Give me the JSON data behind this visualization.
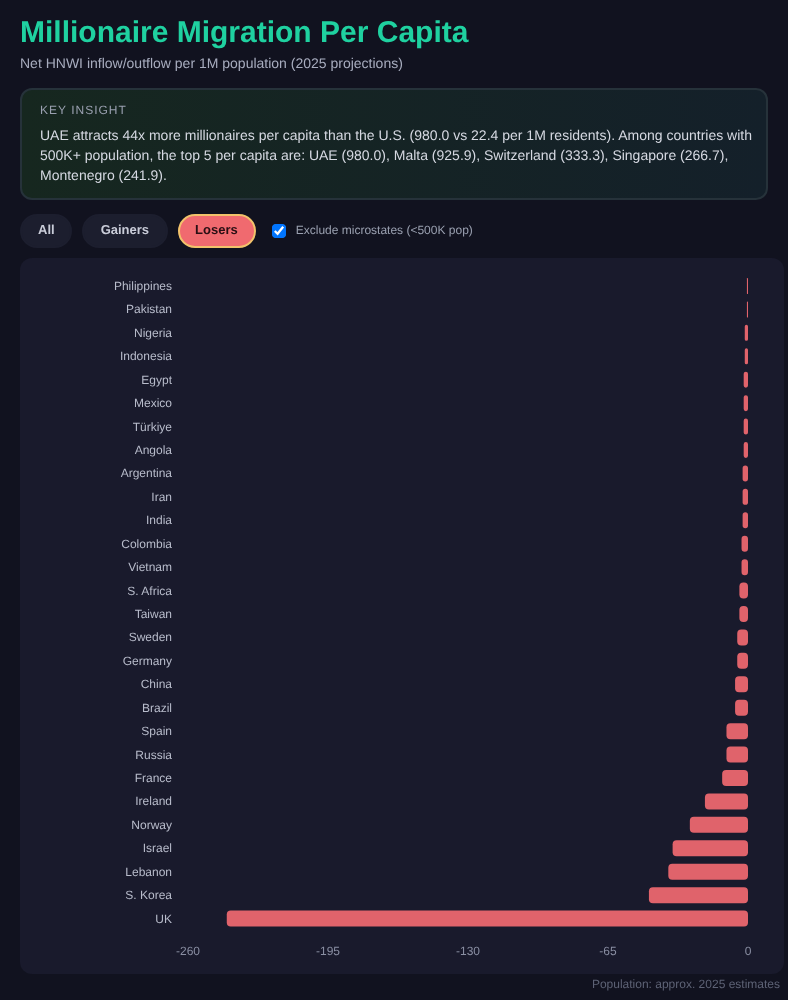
{
  "chart_data": {
    "type": "bar",
    "orientation": "horizontal",
    "title": "Millionaire Migration Per Capita",
    "subtitle": "Net HNWI inflow/outflow per 1M population (2025 projections)",
    "annotations": [
      "KEY INSIGHT",
      "UAE attracts 44x more millionaires per capita than the U.S. (980.0 vs 22.4 per 1M residents). Among countries with 500K+ population, the top 5 per capita are: UAE (980.0), Malta (925.9), Switzerland (333.3), Singapore (266.7), Montenegro (241.9).",
      "All",
      "Gainers",
      "Losers",
      "Exclude microstates (<500K pop)",
      "Population: approx. 2025 estimates"
    ],
    "categories": [
      "Philippines",
      "Pakistan",
      "Nigeria",
      "Indonesia",
      "Egypt",
      "Mexico",
      "Türkiye",
      "Angola",
      "Argentina",
      "Iran",
      "India",
      "Colombia",
      "Vietnam",
      "S. Africa",
      "Taiwan",
      "Sweden",
      "Germany",
      "China",
      "Brazil",
      "Spain",
      "Russia",
      "France",
      "Ireland",
      "Norway",
      "Israel",
      "Lebanon",
      "S. Korea",
      "UK"
    ],
    "values": [
      -0.5,
      -0.5,
      -1.5,
      -1.5,
      -2,
      -2,
      -2,
      -2,
      -2.5,
      -2.5,
      -2.5,
      -3,
      -3,
      -4,
      -4,
      -5,
      -5,
      -6,
      -6,
      -10,
      -10,
      -12,
      -20,
      -27,
      -35,
      -37,
      -46,
      -242
    ],
    "color": "#e0636b",
    "xlim": [
      -260,
      0
    ],
    "xticks": [
      -260,
      -195,
      -130,
      -65,
      0
    ]
  }
}
